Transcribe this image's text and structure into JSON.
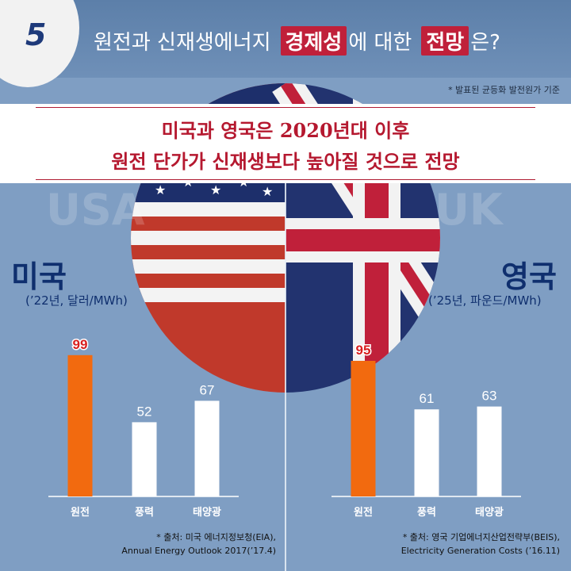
{
  "header": {
    "number": "5",
    "title_pre": "원전과 신재생에너지",
    "title_hl1": "경제성",
    "title_mid": "에 대한",
    "title_hl2": "전망",
    "title_post": "은?",
    "note": "* 발표된 균등화 발전원가 기준"
  },
  "banner": {
    "line1": "미국과 영국은 2020년대 이후",
    "line2": "원전 단가가 신재생보다 높아질 것으로 전망"
  },
  "background_labels": {
    "left": "USA",
    "right": "UK"
  },
  "colors": {
    "nuclear_bar": "#f26a0f",
    "other_bar": "#ffffff",
    "highlight": "#c0203a",
    "navy": "#0f2f6e"
  },
  "chart_data": [
    {
      "type": "bar",
      "title": "미국",
      "subtitle": "(’22년, 달러/MWh)",
      "categories": [
        "원전",
        "풍력",
        "태양광"
      ],
      "values": [
        99,
        52,
        67
      ],
      "source_line1": "* 출처: 미국 에너지정보청(EIA),",
      "source_line2": "Annual Energy Outlook 2017(’17.4)"
    },
    {
      "type": "bar",
      "title": "영국",
      "subtitle": "(’25년, 파운드/MWh)",
      "categories": [
        "원전",
        "풍력",
        "태양광"
      ],
      "values": [
        95,
        61,
        63
      ],
      "source_line1": "* 출처: 영국 기업에너지산업전략부(BEIS),",
      "source_line2": "Electricity Generation Costs (’16.11)"
    }
  ]
}
